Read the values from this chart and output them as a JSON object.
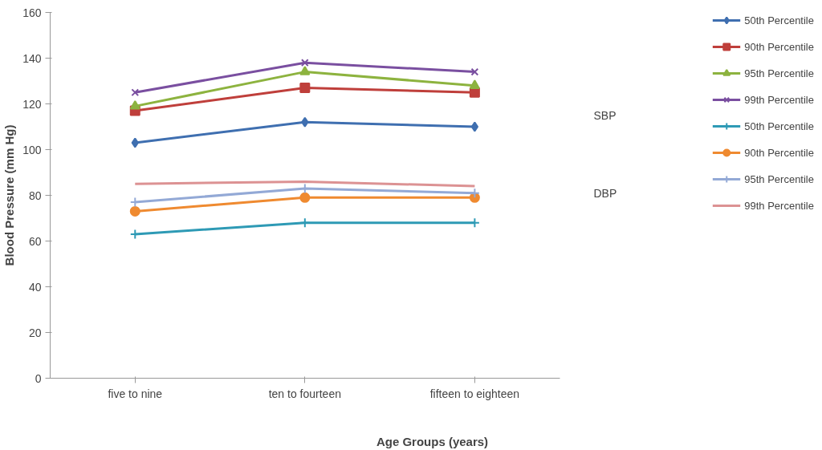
{
  "chart_data": {
    "type": "line",
    "categories": [
      "five to nine",
      "ten to fourteen",
      "fifteen to eighteen"
    ],
    "xlabel": "Age Groups (years)",
    "ylabel": "Blood Pressure (mm Hg)",
    "ylim": [
      0,
      160
    ],
    "yticks": [
      0,
      20,
      40,
      60,
      80,
      100,
      120,
      140,
      160
    ],
    "grid": false,
    "legend": "top right",
    "annotations": [
      "SBP",
      "DBP"
    ],
    "series": [
      {
        "name": "50th Percentile",
        "color": "#3f6fb0",
        "marker": "diamond",
        "values": [
          103,
          112,
          110
        ]
      },
      {
        "name": "90th Percentile",
        "color": "#bf3f3b",
        "marker": "square",
        "values": [
          117,
          127,
          125
        ]
      },
      {
        "name": "95th Percentile",
        "color": "#8db33f",
        "marker": "triangle",
        "values": [
          119,
          134,
          128
        ]
      },
      {
        "name": "99th Percentile",
        "color": "#7a4fa0",
        "marker": "x",
        "values": [
          125,
          138,
          134
        ]
      },
      {
        "name": "50th Percentile",
        "color": "#2e9ab5",
        "marker": "cross",
        "values": [
          63,
          68,
          68
        ]
      },
      {
        "name": "90th Percentile",
        "color": "#ef8a30",
        "marker": "circle",
        "values": [
          73,
          79,
          79
        ]
      },
      {
        "name": "95th Percentile",
        "color": "#93a9d6",
        "marker": "cross",
        "values": [
          77,
          83,
          81
        ]
      },
      {
        "name": "99th Percentile",
        "color": "#dc9293",
        "values": [
          85,
          86,
          84
        ]
      }
    ]
  }
}
